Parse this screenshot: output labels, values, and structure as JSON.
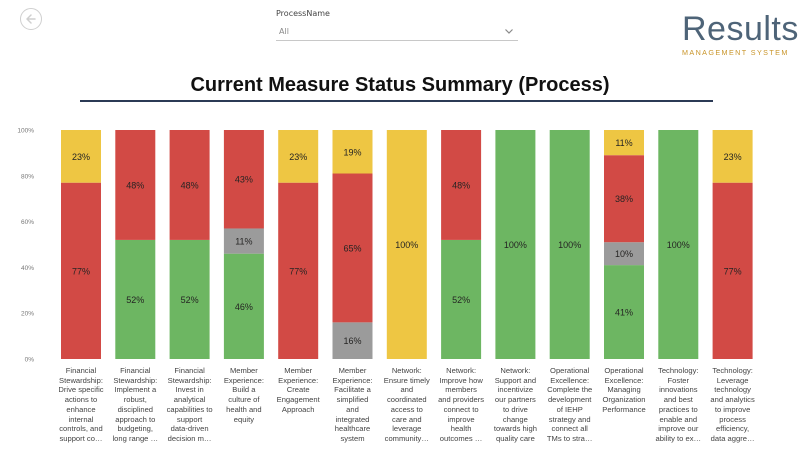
{
  "filter": {
    "label": "ProcessName",
    "value": "All"
  },
  "logo": {
    "name": "Results",
    "subtitle": "MANAGEMENT SYSTEM"
  },
  "icons": {
    "back": "back-arrow-icon",
    "dropdown": "chevron-down-icon"
  },
  "colors": {
    "green": "#6db662",
    "red": "#d24a45",
    "gray": "#9b9b9b",
    "yellow": "#eec643"
  },
  "chart_data": {
    "type": "bar",
    "stacked": true,
    "title": "Current Measure Status Summary (Process)",
    "ylim": [
      0,
      100
    ],
    "yticks": [
      "0%",
      "20%",
      "40%",
      "60%",
      "80%",
      "100%"
    ],
    "categories": [
      "Financial\nStewardship:\nDrive specific\nactions to\nenhance\ninternal\ncontrols, and\nsupport co…",
      "Financial\nStewardship:\nImplement a\nrobust,\ndisciplined\napproach to\nbudgeting,\nlong range …",
      "Financial\nStewardship:\nInvest in\nanalytical\ncapabilities to\nsupport\ndata-driven\ndecision m…",
      "Member\nExperience:\nBuild a\nculture of\nhealth and\nequity",
      "Member\nExperience:\nCreate\nEngagement\nApproach",
      "Member\nExperience:\nFacilitate a\nsimplified\nand\nintegrated\nhealthcare\nsystem",
      "Network:\nEnsure timely\nand\ncoordinated\naccess to\ncare and\nleverage\ncommunity…",
      "Network:\nImprove how\nmembers\nand providers\nconnect to\nimprove\nhealth\noutcomes …",
      "Network:\nSupport and\nincentivize\nour partners\nto drive\nchange\ntowards high\nquality care",
      "Operational\nExcellence:\nComplete the\ndevelopment\nof IEHP\nstrategy and\nconnect all\nTMs to stra…",
      "Operational\nExcellence:\nManaging\nOrganization\nPerformance",
      "Technology:\nFoster\ninnovations\nand best\npractices to\nenable and\nimprove our\nability to ex…",
      "Technology:\nLeverage\ntechnology\nand analytics\nto improve\nprocess\nefficiency,\ndata aggre…"
    ],
    "series": [
      {
        "name": "Green",
        "values": [
          0,
          52,
          52,
          46,
          0,
          0,
          0,
          52,
          100,
          100,
          41,
          100,
          0
        ]
      },
      {
        "name": "Gray",
        "values": [
          0,
          0,
          0,
          11,
          0,
          16,
          0,
          0,
          0,
          0,
          10,
          0,
          0
        ]
      },
      {
        "name": "Red",
        "values": [
          77,
          48,
          48,
          43,
          77,
          65,
          0,
          48,
          0,
          0,
          38,
          0,
          77
        ]
      },
      {
        "name": "Yellow",
        "values": [
          23,
          0,
          0,
          0,
          23,
          19,
          100,
          0,
          0,
          0,
          11,
          0,
          23
        ]
      }
    ]
  }
}
